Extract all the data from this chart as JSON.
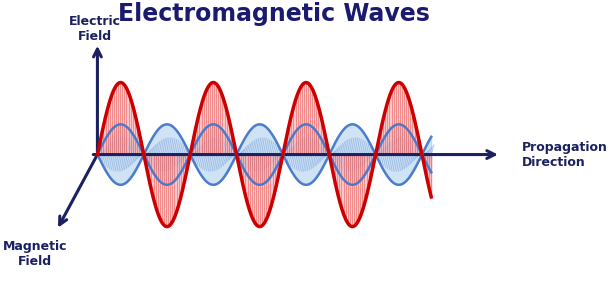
{
  "title": "Electromagnetic Waves",
  "title_color": "#1a1a6e",
  "title_fontsize": 17,
  "title_fontweight": "bold",
  "background_color": "#ffffff",
  "electric_color": "#cc0000",
  "electric_fill_color": "#ffaaaa",
  "magnetic_color": "#4477cc",
  "magnetic_fill_color": "#aaccee",
  "axis_color": "#1a2060",
  "label_electric": "Electric\nField",
  "label_magnetic": "Magnetic\nField",
  "label_propagation": "Propagation\nDirection",
  "label_fontsize": 9,
  "amplitude_electric": 1.0,
  "amplitude_magnetic": 0.42,
  "wave_period": 2.0,
  "x_start": 0.0,
  "x_end": 7.2,
  "xlim_min": -1.6,
  "xlim_max": 9.8,
  "ylim_min": -1.75,
  "ylim_max": 2.0
}
